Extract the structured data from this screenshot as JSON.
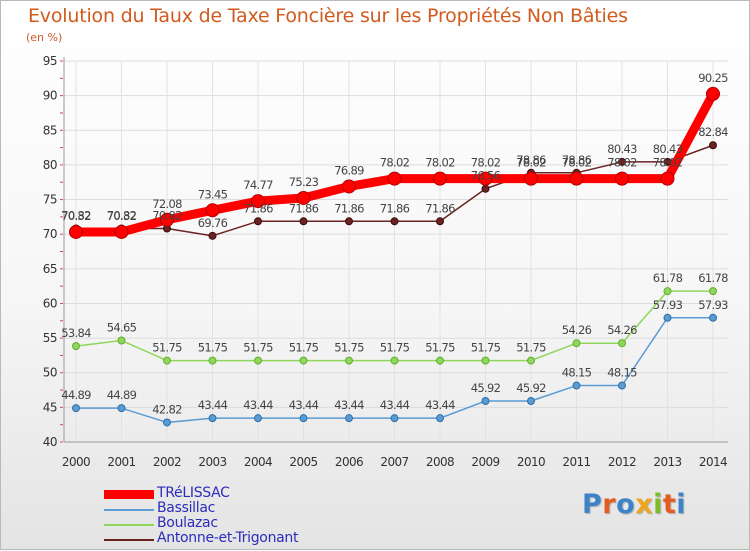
{
  "title": "Evolution du Taux de Taxe Foncière sur les Propriétés Non Bâties",
  "unit_label": "(en %)",
  "logo_text": "Proxiti",
  "logo_letter_colors": [
    "#3c83c8",
    "#e65c1f",
    "#3c83c8",
    "#f0a51e",
    "#7cbc2b",
    "#e65c1f",
    "#3c83c8"
  ],
  "chart_data": {
    "type": "line",
    "title": "Evolution du Taux de Taxe Foncière sur les Propriétés Non Bâties",
    "ylabel": "(en %)",
    "xlabel": "",
    "ylim": [
      40,
      95
    ],
    "yticks": [
      40,
      45,
      50,
      55,
      60,
      65,
      70,
      75,
      80,
      85,
      90,
      95
    ],
    "grid": true,
    "legend_position": "bottom-left",
    "categories": [
      "2000",
      "2001",
      "2002",
      "2003",
      "2004",
      "2005",
      "2006",
      "2007",
      "2008",
      "2009",
      "2010",
      "2011",
      "2012",
      "2013",
      "2014"
    ],
    "series": [
      {
        "name": "TRéLISSAC",
        "color": "#ff0000",
        "values": [
          70.32,
          70.32,
          72.08,
          73.45,
          74.77,
          75.23,
          76.89,
          78.02,
          78.02,
          78.02,
          78.02,
          78.02,
          78.02,
          78.02,
          90.25
        ],
        "labels": [
          "70.32",
          "70.32",
          "72.08",
          "73.45",
          "74.77",
          "75.23",
          "76.89",
          "78.02",
          "78.02",
          "78.02",
          "78.02",
          "78.02",
          "78.02",
          "78.02",
          "90.25"
        ]
      },
      {
        "name": "Bassillac",
        "color": "#5a9bd4",
        "values": [
          44.89,
          44.89,
          42.82,
          43.44,
          43.44,
          43.44,
          43.44,
          43.44,
          43.44,
          45.92,
          45.92,
          48.15,
          48.15,
          57.93,
          57.93
        ],
        "labels": [
          "44.89",
          "44.89",
          "42.82",
          "43.44",
          "43.44",
          "43.44",
          "43.44",
          "43.44",
          "43.44",
          "45.92",
          "45.92",
          "48.15",
          "48.15",
          "57.93",
          "57.93"
        ]
      },
      {
        "name": "Boulazac",
        "color": "#8fd65b",
        "values": [
          53.84,
          54.65,
          51.75,
          51.75,
          51.75,
          51.75,
          51.75,
          51.75,
          51.75,
          51.75,
          51.75,
          54.26,
          54.26,
          61.78,
          61.78
        ],
        "labels": [
          "53.84",
          "54.65",
          "51.75",
          "51.75",
          "51.75",
          "51.75",
          "51.75",
          "51.75",
          "51.75",
          "51.75",
          "51.75",
          "54.26",
          "54.26",
          "61.78",
          "61.78"
        ]
      },
      {
        "name": "Antonne-et-Trigonant",
        "color": "#6b2222",
        "values": [
          70.82,
          70.82,
          70.82,
          69.76,
          71.86,
          71.86,
          71.86,
          71.86,
          71.86,
          76.56,
          78.86,
          78.86,
          80.43,
          80.43,
          82.84
        ],
        "labels": [
          "70.82",
          "70.82",
          "70.82",
          "69.76",
          "71.86",
          "71.86",
          "71.86",
          "71.86",
          "71.86",
          "76.56",
          "78.86",
          "78.86",
          "80.43",
          "80.43",
          "82.84"
        ]
      }
    ]
  }
}
